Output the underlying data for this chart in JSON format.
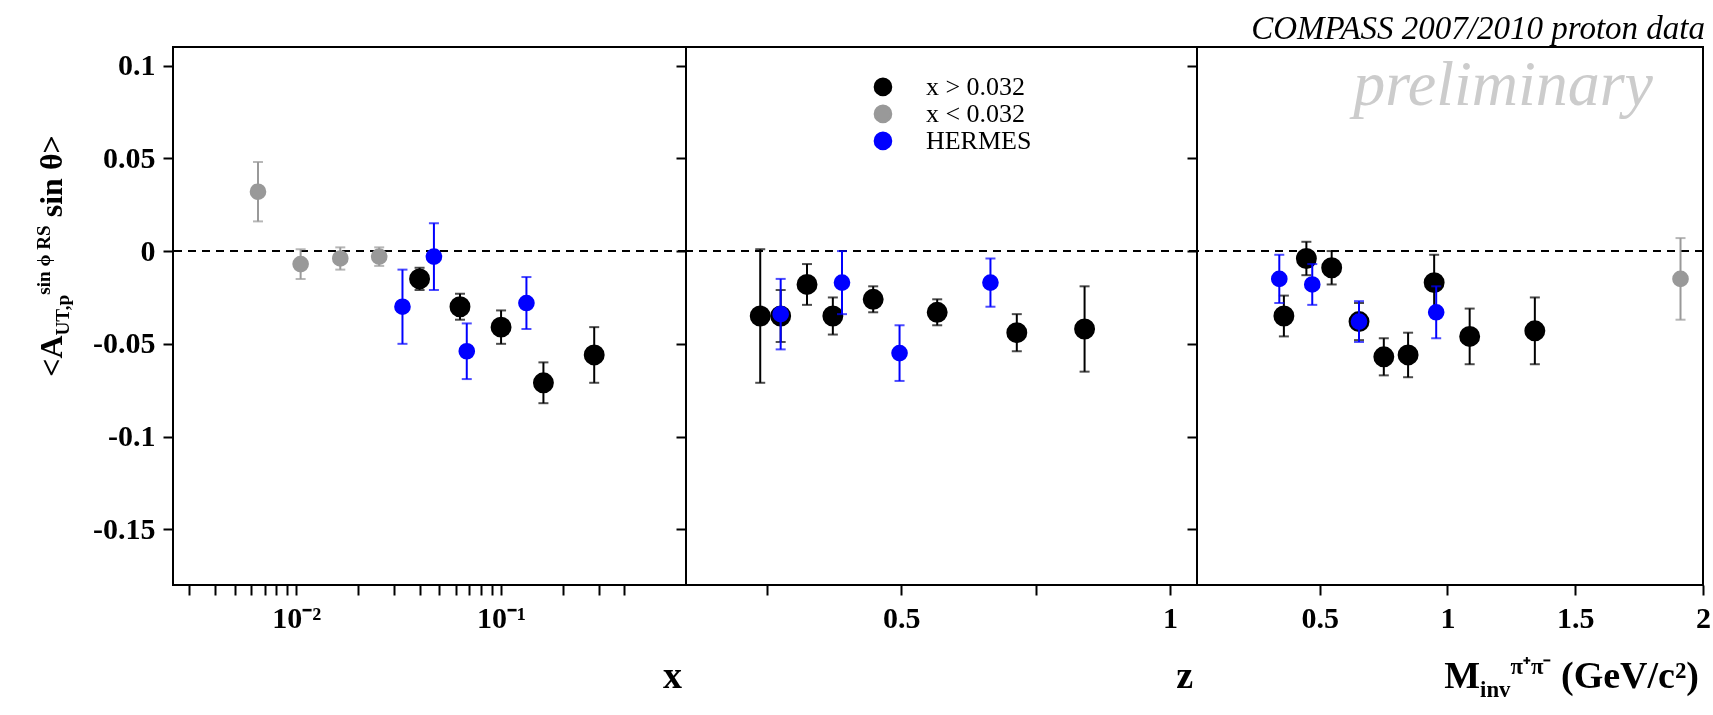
{
  "chart_data": [
    {
      "type": "scatter",
      "ylabel": "<A$_{UT,p}$$^{sin ϕ RS}$ sin θ>",
      "xlabel": "x",
      "log": "x",
      "marker": "circle",
      "legend": false,
      "grid": false,
      "xlim": [
        0.0025,
        0.8
      ],
      "xticks": [
        {
          "value": 0.003,
          "label": null
        },
        {
          "value": 0.004,
          "label": null
        },
        {
          "value": 0.005,
          "label": null
        },
        {
          "value": 0.006,
          "label": null
        },
        {
          "value": 0.007,
          "label": null
        },
        {
          "value": 0.008,
          "label": null
        },
        {
          "value": 0.009,
          "label": null
        },
        {
          "value": 0.01,
          "label": "10⁻²"
        },
        {
          "value": 0.02,
          "label": null
        },
        {
          "value": 0.03,
          "label": null
        },
        {
          "value": 0.04,
          "label": null
        },
        {
          "value": 0.05,
          "label": null
        },
        {
          "value": 0.06,
          "label": null
        },
        {
          "value": 0.07,
          "label": null
        },
        {
          "value": 0.08,
          "label": null
        },
        {
          "value": 0.09,
          "label": null
        },
        {
          "value": 0.1,
          "label": "10⁻¹"
        },
        {
          "value": 0.2,
          "label": null
        },
        {
          "value": 0.3,
          "label": null
        },
        {
          "value": 0.4,
          "label": null
        }
      ],
      "ylim": [
        -0.18,
        0.11
      ],
      "yticks": [
        0.1,
        0.05,
        0,
        -0.05,
        -0.1,
        -0.15
      ],
      "ref_lines": [
        {
          "axis": "y",
          "value": 0,
          "line_style": "dashed",
          "color": "#000000"
        }
      ],
      "series": [
        {
          "color": "#000000",
          "x": [
            0.04,
            0.063,
            0.1,
            0.161,
            0.285
          ],
          "values": [
            -0.015,
            -0.03,
            -0.041,
            -0.071,
            -0.056
          ],
          "errors": [
            0.006,
            0.007,
            0.009,
            0.011,
            0.015
          ]
        },
        {
          "color": "#999999",
          "x": [
            0.0065,
            0.0105,
            0.0164,
            0.0254
          ],
          "values": [
            0.032,
            -0.007,
            -0.004,
            -0.003
          ],
          "errors": [
            0.016,
            0.008,
            0.006,
            0.005
          ]
        },
        {
          "color": "#0000ff",
          "x": [
            0.033,
            0.047,
            0.068,
            0.133
          ],
          "values": [
            -0.03,
            -0.003,
            -0.054,
            -0.028
          ],
          "errors": [
            0.02,
            0.018,
            0.015,
            0.014
          ]
        }
      ]
    },
    {
      "type": "scatter",
      "xlabel": "z",
      "marker": "circle",
      "legend": "top",
      "grid": false,
      "tick_labels": "x",
      "xlim": [
        0.1,
        1.05
      ],
      "xticks": [
        {
          "value": 0.25,
          "label": null
        },
        0.5,
        {
          "value": 0.75,
          "label": null
        },
        1
      ],
      "ylim": [
        -0.18,
        0.11
      ],
      "yticks": [
        0.1,
        0.05,
        0,
        -0.05,
        -0.1,
        -0.15
      ],
      "ref_lines": [
        {
          "axis": "y",
          "value": 0,
          "line_style": "dashed",
          "color": "#000000"
        }
      ],
      "series": [
        {
          "name": "x > 0.032",
          "color": "#000000",
          "x": [
            0.238,
            0.276,
            0.325,
            0.373,
            0.448,
            0.567,
            0.715,
            0.841
          ],
          "values": [
            -0.035,
            -0.035,
            -0.018,
            -0.035,
            -0.026,
            -0.033,
            -0.044,
            -0.042
          ],
          "errors": [
            0.036,
            0.014,
            0.011,
            0.01,
            0.007,
            0.007,
            0.01,
            0.023
          ]
        },
        {
          "name": "x < 0.032",
          "color": "#999999"
        },
        {
          "name": "HERMES",
          "color": "#0000ff",
          "x": [
            0.276,
            0.39,
            0.497,
            0.666
          ],
          "values": [
            -0.034,
            -0.017,
            -0.055,
            -0.017
          ],
          "errors": [
            0.019,
            0.017,
            0.015,
            0.013
          ]
        }
      ]
    },
    {
      "type": "scatter",
      "title": "COMPASS 2007/2010 proton data",
      "xlabel": "M$_{inv}$$^{π⁺π⁻}$ (GeV/c²)",
      "annotations": [
        "preliminary"
      ],
      "marker": "circle",
      "legend": false,
      "grid": false,
      "tick_labels": "x",
      "xlim": [
        0.02,
        2
      ],
      "xticks": [
        0.5,
        1,
        1.5,
        2
      ],
      "ylim": [
        -0.18,
        0.11
      ],
      "yticks": [
        0.1,
        0.05,
        0,
        -0.05,
        -0.1,
        -0.15
      ],
      "ref_lines": [
        {
          "axis": "y",
          "value": 0,
          "line_style": "dashed",
          "color": "#000000"
        }
      ],
      "series": [
        {
          "color": "#000000",
          "x": [
            0.36,
            0.448,
            0.547,
            0.654,
            0.751,
            0.846,
            0.948,
            1.087,
            1.342
          ],
          "values": [
            -0.035,
            -0.004,
            -0.009,
            -0.038,
            -0.057,
            -0.056,
            -0.017,
            -0.046,
            -0.043
          ],
          "errors": [
            0.011,
            0.009,
            0.009,
            0.01,
            0.01,
            0.012,
            0.015,
            0.015,
            0.018
          ]
        },
        {
          "color": "#999999",
          "x": [
            1.912
          ],
          "values": [
            -0.015
          ],
          "errors": [
            0.022
          ]
        },
        {
          "color": "#0000ff",
          "x": [
            0.342,
            0.471,
            0.654,
            0.956
          ],
          "values": [
            -0.015,
            -0.018,
            -0.038,
            -0.033
          ],
          "errors": [
            0.013,
            0.011,
            0.011,
            0.014
          ]
        }
      ]
    }
  ]
}
